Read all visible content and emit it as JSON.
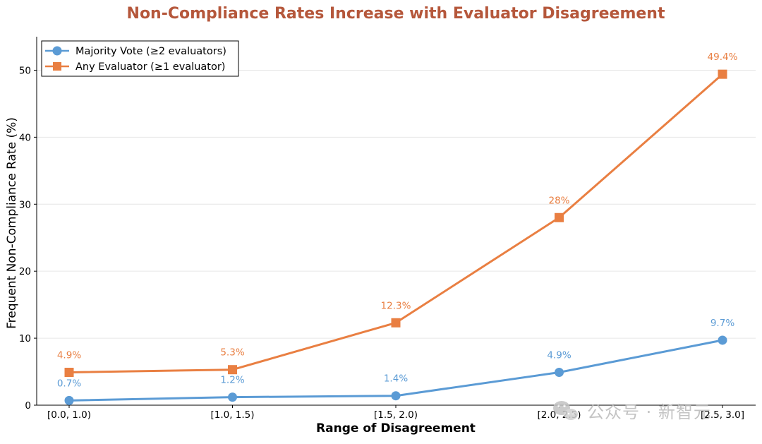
{
  "chart_data": {
    "type": "line",
    "title": "Non-Compliance Rates Increase with Evaluator Disagreement",
    "xlabel": "Range of Disagreement",
    "ylabel": "Frequent Non-Compliance Rate (%)",
    "categories": [
      "[0.0, 1.0)",
      "[1.0, 1.5)",
      "[1.5, 2.0)",
      "[2.0, 2.5)",
      "[2.5, 3.0]"
    ],
    "ylim": [
      0,
      55
    ],
    "yticks": [
      0,
      10,
      20,
      30,
      40,
      50
    ],
    "grid": true,
    "legend_position": "top-left",
    "series": [
      {
        "name": "Majority Vote (≥2 evaluators)",
        "values": [
          0.7,
          1.2,
          1.4,
          4.9,
          9.7
        ],
        "labels": [
          "0.7%",
          "1.2%",
          "1.4%",
          "4.9%",
          "9.7%"
        ],
        "color": "#5b9bd5",
        "marker": "circle"
      },
      {
        "name": "Any Evaluator (≥1 evaluator)",
        "values": [
          4.9,
          5.3,
          12.3,
          28,
          49.4
        ],
        "labels": [
          "4.9%",
          "5.3%",
          "12.3%",
          "28%",
          "49.4%"
        ],
        "color": "#e97f42",
        "marker": "square"
      }
    ],
    "title_color": "#b5573b"
  },
  "watermark": {
    "text": "公众号 · 新智元",
    "icon": "wechat-icon"
  }
}
